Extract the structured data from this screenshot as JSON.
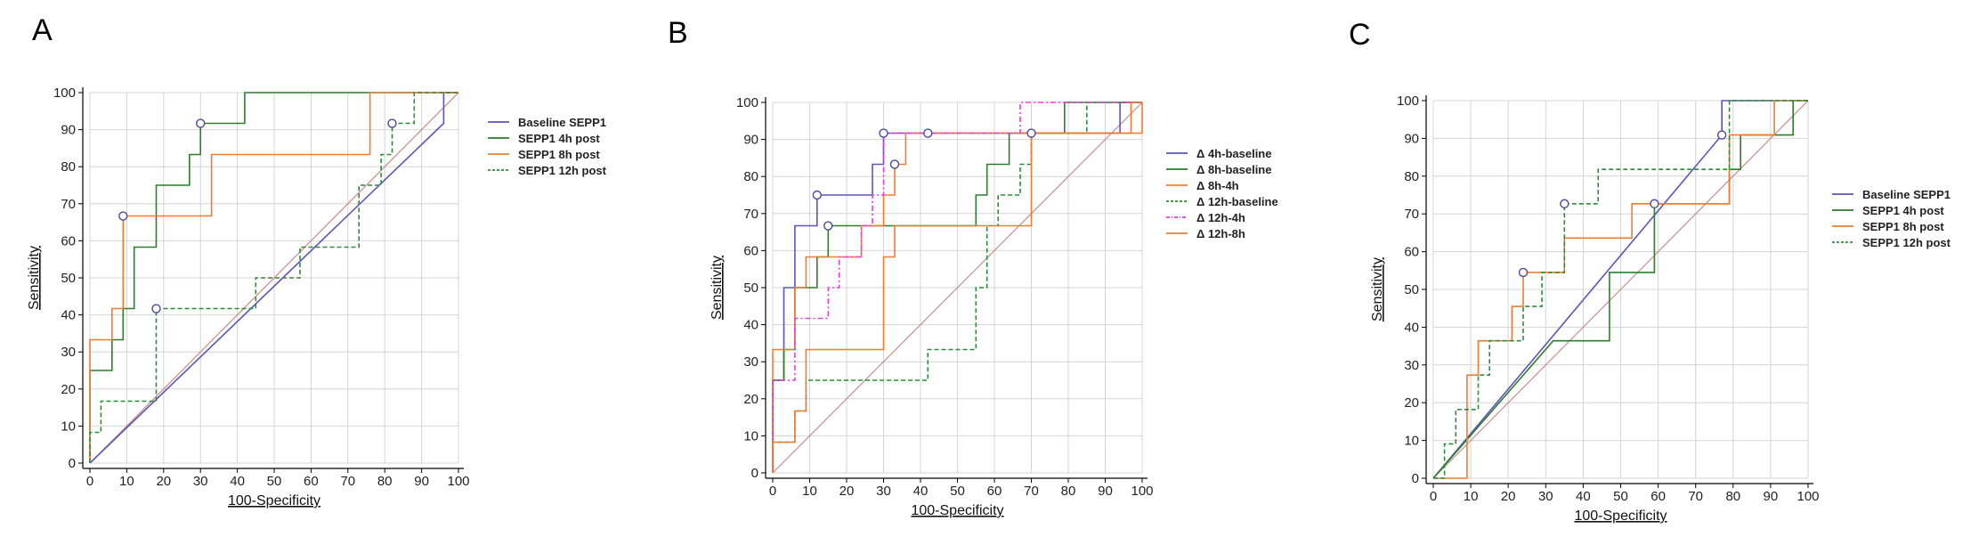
{
  "figure": {
    "panel_labels": [
      "A",
      "B",
      "C"
    ]
  },
  "chart_data": [
    {
      "type": "line",
      "panel": "A",
      "xlabel": "100-Specificity",
      "ylabel": "Sensitivity",
      "xlim": [
        0,
        100
      ],
      "ylim": [
        0,
        100
      ],
      "xticks": [
        "0",
        "10",
        "20",
        "30",
        "40",
        "50",
        "60",
        "70",
        "80",
        "90",
        "100"
      ],
      "yticks": [
        "0",
        "10",
        "20",
        "30",
        "40",
        "50",
        "60",
        "70",
        "80",
        "90",
        "100"
      ],
      "grid": true,
      "legend_position": "right",
      "diagonal_color": "#c98c8c",
      "series": [
        {
          "name": "Baseline SEPP1",
          "color": "#5b56b5",
          "dash": "solid",
          "is_line": true,
          "points": [
            [
              0,
              0
            ],
            [
              96,
              91.7
            ],
            [
              96,
              100
            ],
            [
              100,
              100
            ]
          ],
          "marker": [
            82,
            91.7
          ]
        },
        {
          "name": "SEPP1 4h post",
          "color": "#2d7d2d",
          "dash": "solid",
          "points": [
            [
              0,
              0
            ],
            [
              0,
              25
            ],
            [
              6,
              25
            ],
            [
              6,
              33.3
            ],
            [
              9,
              33.3
            ],
            [
              9,
              41.7
            ],
            [
              12,
              41.7
            ],
            [
              12,
              58.3
            ],
            [
              18,
              58.3
            ],
            [
              18,
              75
            ],
            [
              27,
              75
            ],
            [
              27,
              83.3
            ],
            [
              30,
              83.3
            ],
            [
              30,
              91.7
            ],
            [
              42,
              91.7
            ],
            [
              42,
              100
            ],
            [
              100,
              100
            ]
          ],
          "marker": [
            30,
            91.7
          ]
        },
        {
          "name": "SEPP1 8h post",
          "color": "#ed7d31",
          "dash": "solid",
          "points": [
            [
              0,
              0
            ],
            [
              0,
              33.3
            ],
            [
              6,
              33.3
            ],
            [
              6,
              41.7
            ],
            [
              9,
              41.7
            ],
            [
              9,
              66.7
            ],
            [
              33,
              66.7
            ],
            [
              33,
              83.3
            ],
            [
              76,
              83.3
            ],
            [
              76,
              100
            ],
            [
              100,
              100
            ]
          ],
          "marker": [
            9,
            66.7
          ]
        },
        {
          "name": "SEPP1 12h post",
          "color": "#2e8b3a",
          "dash": "dashed",
          "points": [
            [
              0,
              0
            ],
            [
              0,
              8.3
            ],
            [
              3,
              8.3
            ],
            [
              3,
              16.7
            ],
            [
              18,
              16.7
            ],
            [
              18,
              41.7
            ],
            [
              45,
              41.7
            ],
            [
              45,
              50
            ],
            [
              57,
              50
            ],
            [
              57,
              58.3
            ],
            [
              73,
              58.3
            ],
            [
              73,
              75
            ],
            [
              79,
              75
            ],
            [
              79,
              83.3
            ],
            [
              82,
              83.3
            ],
            [
              82,
              91.7
            ],
            [
              88,
              91.7
            ],
            [
              88,
              100
            ],
            [
              100,
              100
            ]
          ],
          "marker": [
            18,
            41.7
          ]
        }
      ]
    },
    {
      "type": "line",
      "panel": "B",
      "xlabel": "100-Specificity",
      "ylabel": "Sensitivity",
      "xlim": [
        0,
        100
      ],
      "ylim": [
        0,
        100
      ],
      "xticks": [
        "0",
        "10",
        "20",
        "30",
        "40",
        "50",
        "60",
        "70",
        "80",
        "90",
        "100"
      ],
      "yticks": [
        "0",
        "10",
        "20",
        "30",
        "40",
        "50",
        "60",
        "70",
        "80",
        "90",
        "100"
      ],
      "grid": true,
      "legend_position": "right",
      "diagonal_color": "#c98c8c",
      "series": [
        {
          "name": "Δ 4h-baseline",
          "color": "#5b56b5",
          "dash": "solid",
          "points": [
            [
              0,
              0
            ],
            [
              0,
              25
            ],
            [
              3,
              25
            ],
            [
              3,
              50
            ],
            [
              6,
              50
            ],
            [
              6,
              66.7
            ],
            [
              12,
              66.7
            ],
            [
              12,
              75
            ],
            [
              27,
              75
            ],
            [
              27,
              83.3
            ],
            [
              30,
              83.3
            ],
            [
              30,
              91.7
            ],
            [
              94,
              91.7
            ],
            [
              94,
              100
            ],
            [
              100,
              100
            ]
          ],
          "marker": [
            12,
            75
          ]
        },
        {
          "name": "Δ 8h-baseline",
          "color": "#2d7d2d",
          "dash": "solid",
          "points": [
            [
              0,
              0
            ],
            [
              0,
              25
            ],
            [
              3,
              25
            ],
            [
              3,
              33.3
            ],
            [
              6,
              33.3
            ],
            [
              6,
              50
            ],
            [
              12,
              50
            ],
            [
              12,
              58.3
            ],
            [
              15,
              58.3
            ],
            [
              15,
              66.7
            ],
            [
              55,
              66.7
            ],
            [
              55,
              75
            ],
            [
              58,
              75
            ],
            [
              58,
              83.3
            ],
            [
              64,
              83.3
            ],
            [
              64,
              91.7
            ],
            [
              79,
              91.7
            ],
            [
              79,
              100
            ],
            [
              100,
              100
            ]
          ],
          "marker": [
            15,
            66.7
          ]
        },
        {
          "name": "Δ 8h-4h",
          "color": "#ed7d31",
          "dash": "solid",
          "points": [
            [
              0,
              0
            ],
            [
              0,
              33.3
            ],
            [
              6,
              33.3
            ],
            [
              6,
              50
            ],
            [
              9,
              50
            ],
            [
              9,
              58.3
            ],
            [
              24,
              58.3
            ],
            [
              24,
              66.7
            ],
            [
              30,
              66.7
            ],
            [
              30,
              75
            ],
            [
              33,
              75
            ],
            [
              33,
              83.3
            ],
            [
              36,
              83.3
            ],
            [
              36,
              91.7
            ],
            [
              42,
              91.7
            ],
            [
              100,
              91.7
            ],
            [
              100,
              100
            ]
          ],
          "marker": [
            42,
            91.7
          ]
        },
        {
          "name": "Δ 12h-baseline",
          "color": "#2e8b3a",
          "dash": "dashed",
          "points": [
            [
              0,
              0
            ],
            [
              0,
              8.3
            ],
            [
              6,
              8.3
            ],
            [
              6,
              16.7
            ],
            [
              9,
              16.7
            ],
            [
              9,
              25
            ],
            [
              42,
              25
            ],
            [
              42,
              33.3
            ],
            [
              55,
              33.3
            ],
            [
              55,
              50
            ],
            [
              58,
              50
            ],
            [
              58,
              66.7
            ],
            [
              61,
              66.7
            ],
            [
              61,
              75
            ],
            [
              67,
              75
            ],
            [
              67,
              83.3
            ],
            [
              70,
              83.3
            ],
            [
              70,
              91.7
            ],
            [
              85,
              91.7
            ],
            [
              85,
              100
            ],
            [
              100,
              100
            ]
          ],
          "marker": null
        },
        {
          "name": "Δ 12h-4h",
          "color": "#e83ee0",
          "dash": "dashdot",
          "points": [
            [
              0,
              0
            ],
            [
              0,
              25
            ],
            [
              6,
              25
            ],
            [
              6,
              41.7
            ],
            [
              15,
              41.7
            ],
            [
              15,
              50
            ],
            [
              18,
              50
            ],
            [
              18,
              58.3
            ],
            [
              24,
              58.3
            ],
            [
              24,
              66.7
            ],
            [
              27,
              66.7
            ],
            [
              27,
              75
            ],
            [
              30,
              75
            ],
            [
              30,
              91.7
            ],
            [
              67,
              91.7
            ],
            [
              67,
              100
            ],
            [
              100,
              100
            ]
          ],
          "marker": [
            30,
            91.7
          ]
        },
        {
          "name": "Δ 12h-8h",
          "color": "#ed7d31",
          "dash": "solid",
          "points": [
            [
              0,
              0
            ],
            [
              0,
              8.3
            ],
            [
              6,
              8.3
            ],
            [
              6,
              16.7
            ],
            [
              9,
              16.7
            ],
            [
              9,
              33.3
            ],
            [
              30,
              33.3
            ],
            [
              30,
              58.3
            ],
            [
              33,
              58.3
            ],
            [
              33,
              66.7
            ],
            [
              70,
              66.7
            ],
            [
              70,
              91.7
            ],
            [
              97,
              91.7
            ],
            [
              97,
              100
            ],
            [
              100,
              100
            ]
          ],
          "marker": [
            70,
            91.7
          ],
          "extra_marker": [
            33,
            83.3
          ]
        }
      ]
    },
    {
      "type": "line",
      "panel": "C",
      "xlabel": "100-Specificity",
      "ylabel": "Sensitivity",
      "xlim": [
        0,
        100
      ],
      "ylim": [
        0,
        100
      ],
      "xticks": [
        "0",
        "10",
        "20",
        "30",
        "40",
        "50",
        "60",
        "70",
        "80",
        "90",
        "100"
      ],
      "yticks": [
        "0",
        "10",
        "20",
        "30",
        "40",
        "50",
        "60",
        "70",
        "80",
        "90",
        "100"
      ],
      "grid": true,
      "legend_position": "right",
      "diagonal_color": "#c98c8c",
      "series": [
        {
          "name": "Baseline SEPP1",
          "color": "#5b56b5",
          "dash": "solid",
          "points": [
            [
              0,
              0
            ],
            [
              77,
              90.9
            ],
            [
              77,
              100
            ],
            [
              100,
              100
            ]
          ],
          "marker": [
            77,
            90.9
          ]
        },
        {
          "name": "SEPP1 4h post",
          "color": "#2d7d2d",
          "dash": "solid",
          "points": [
            [
              0,
              0
            ],
            [
              32,
              36.4
            ],
            [
              47,
              36.4
            ],
            [
              47,
              54.5
            ],
            [
              59,
              54.5
            ],
            [
              59,
              72.7
            ],
            [
              79,
              72.7
            ],
            [
              79,
              81.8
            ],
            [
              82,
              81.8
            ],
            [
              82,
              90.9
            ],
            [
              96,
              90.9
            ],
            [
              96,
              100
            ],
            [
              100,
              100
            ]
          ],
          "marker": null
        },
        {
          "name": "SEPP1 8h post",
          "color": "#ed7d31",
          "dash": "solid",
          "points": [
            [
              0,
              0
            ],
            [
              9,
              0
            ],
            [
              9,
              27.3
            ],
            [
              12,
              27.3
            ],
            [
              12,
              36.4
            ],
            [
              21,
              36.4
            ],
            [
              21,
              45.5
            ],
            [
              24,
              45.5
            ],
            [
              24,
              54.5
            ],
            [
              35,
              54.5
            ],
            [
              35,
              63.6
            ],
            [
              53,
              63.6
            ],
            [
              53,
              72.7
            ],
            [
              79,
              72.7
            ],
            [
              79,
              90.9
            ],
            [
              91,
              90.9
            ],
            [
              91,
              100
            ],
            [
              100,
              100
            ]
          ],
          "marker": [
            59,
            72.7
          ],
          "extra_marker": [
            24,
            54.5
          ]
        },
        {
          "name": "SEPP1 12h post",
          "color": "#2e8b3a",
          "dash": "dashed",
          "points": [
            [
              0,
              0
            ],
            [
              3,
              0
            ],
            [
              3,
              9.1
            ],
            [
              6,
              9.1
            ],
            [
              6,
              18.2
            ],
            [
              12,
              18.2
            ],
            [
              12,
              27.3
            ],
            [
              15,
              27.3
            ],
            [
              15,
              36.4
            ],
            [
              24,
              36.4
            ],
            [
              24,
              45.5
            ],
            [
              29,
              45.5
            ],
            [
              29,
              54.5
            ],
            [
              35,
              54.5
            ],
            [
              35,
              72.7
            ],
            [
              44,
              72.7
            ],
            [
              44,
              81.8
            ],
            [
              79,
              81.8
            ],
            [
              79,
              100
            ],
            [
              100,
              100
            ]
          ],
          "marker": [
            35,
            72.7
          ]
        }
      ]
    }
  ]
}
